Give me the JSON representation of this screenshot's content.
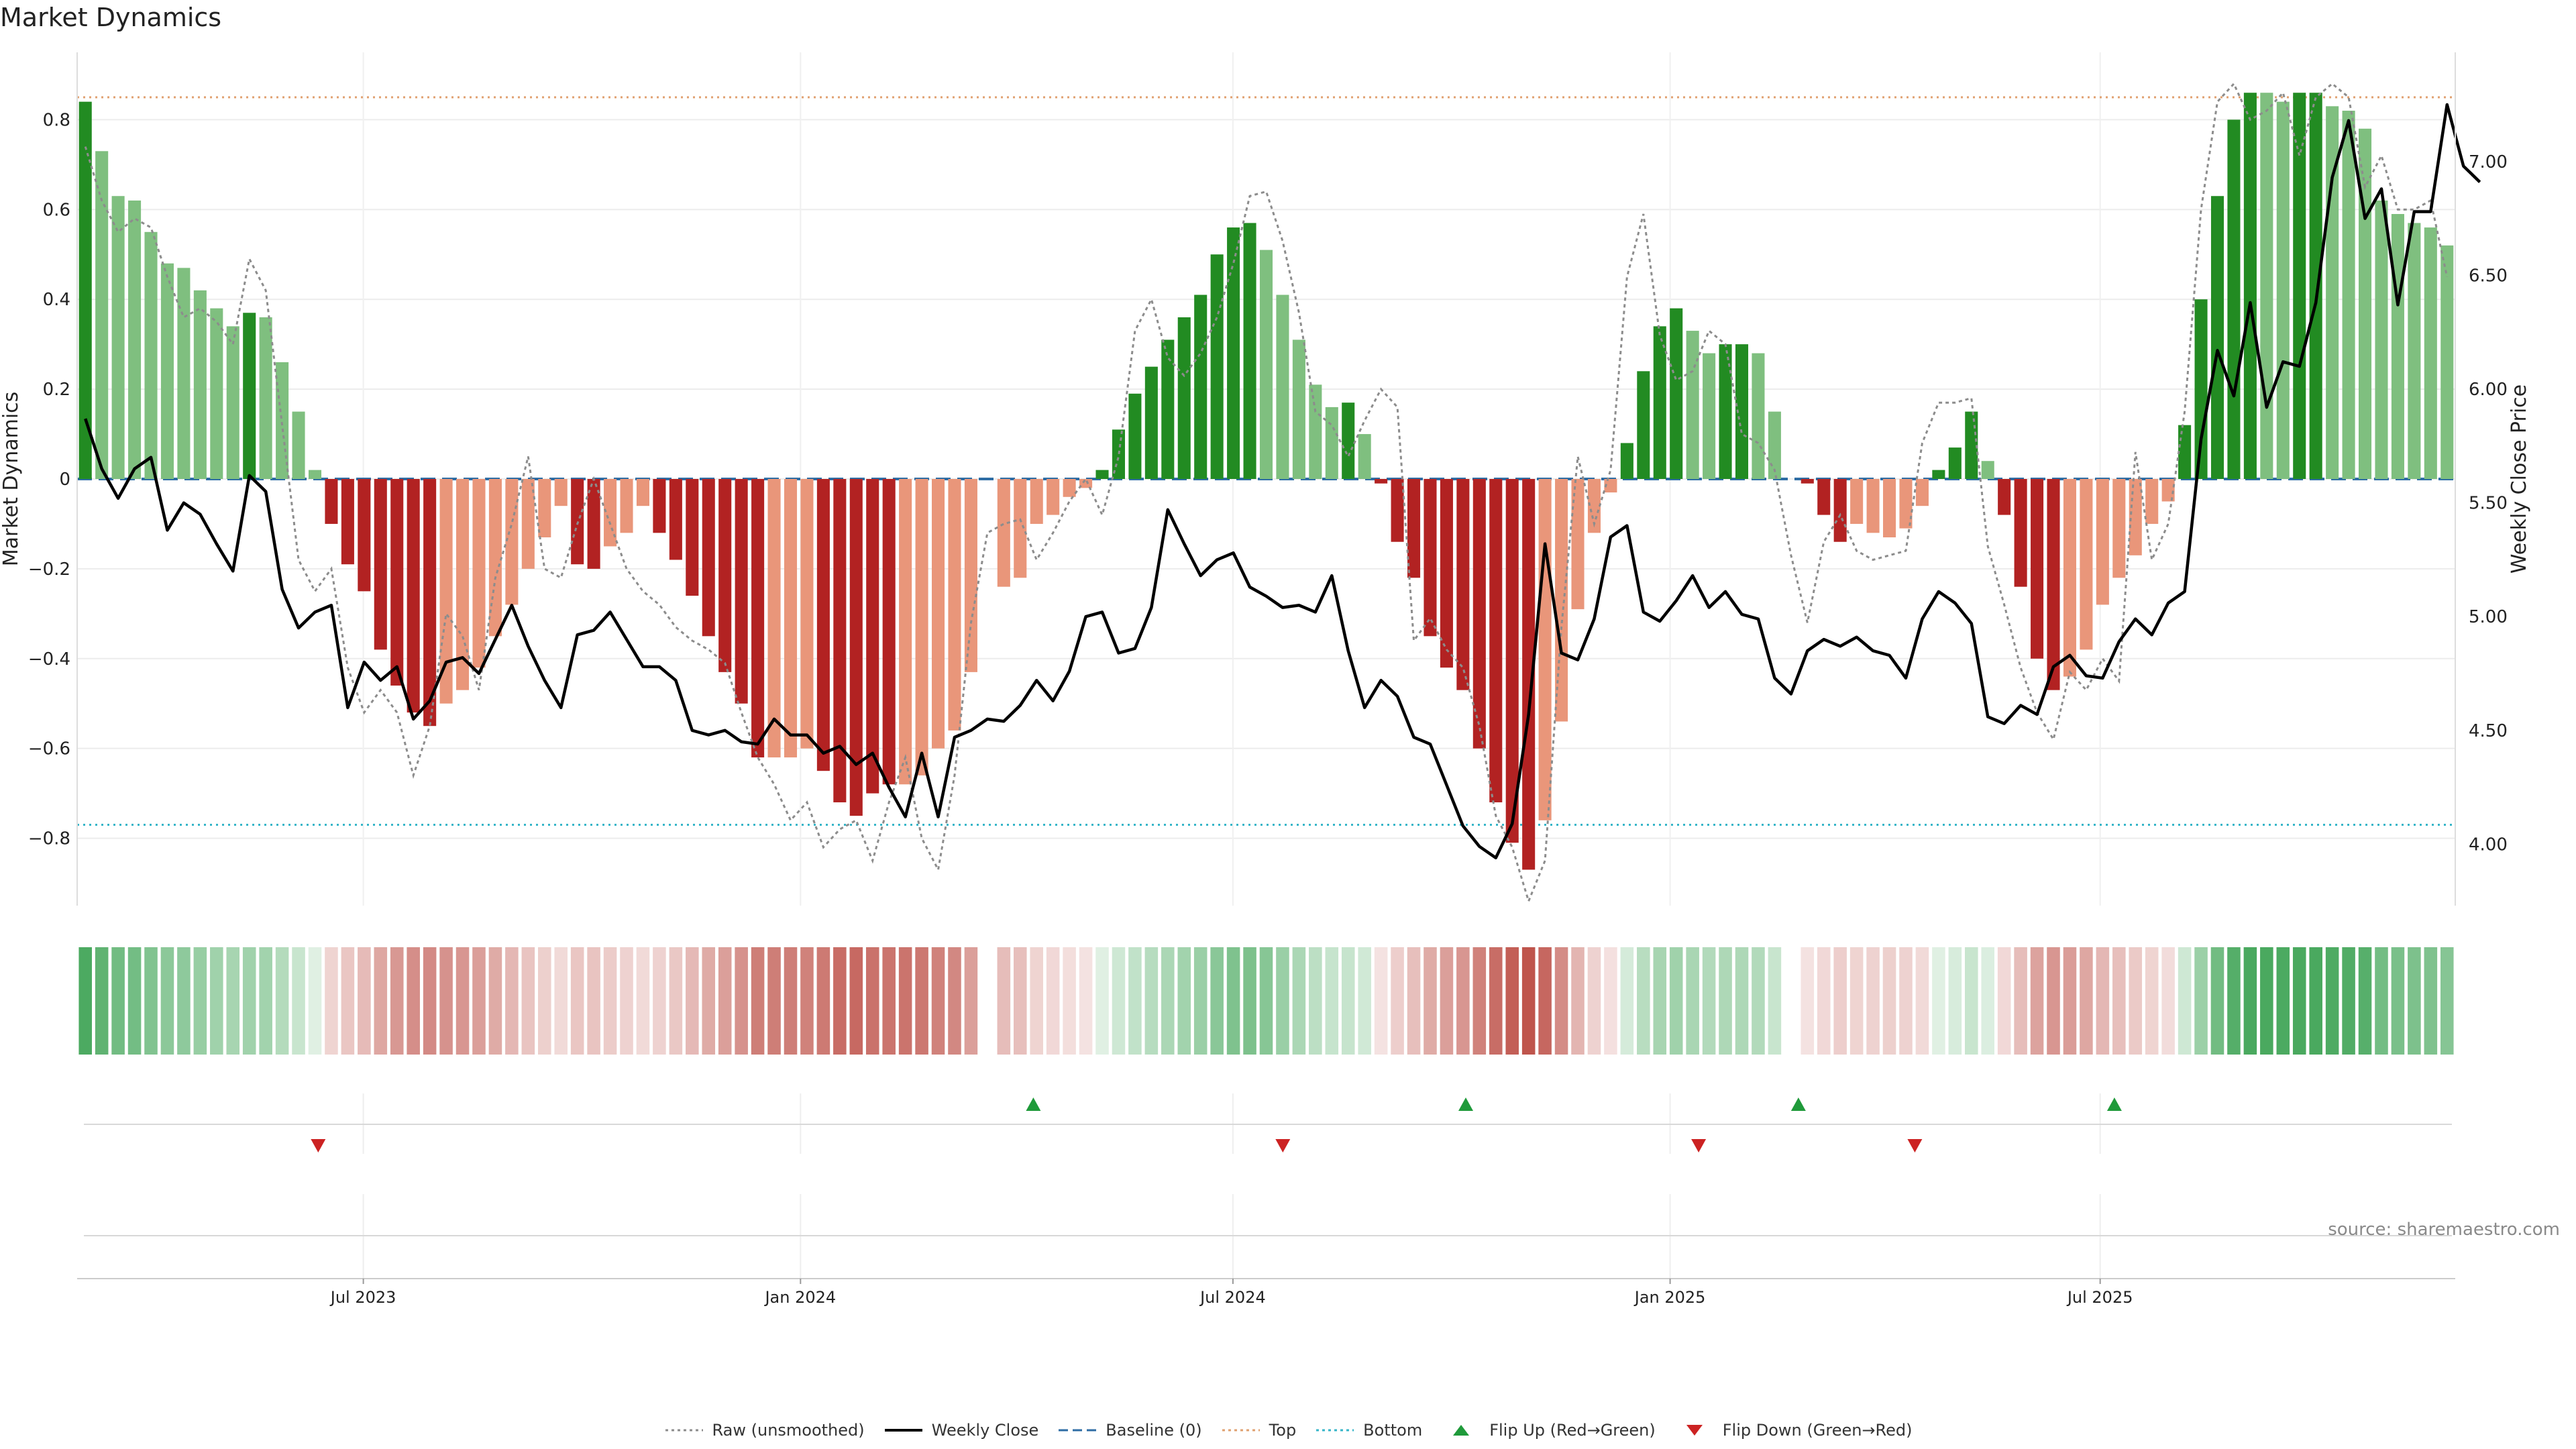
{
  "title": "Market Dynamics",
  "source": "source: sharemaestro.com",
  "colors": {
    "strong_green": "#228b22",
    "light_green": "#7fbf7f",
    "strong_red": "#b22222",
    "light_red": "#e9967a",
    "raw": "#8c8c8c",
    "close": "#000000",
    "baseline": "#2e6da4",
    "top": "#e0a070",
    "bottom": "#35b5c8",
    "flip_up": "#1f9a3a",
    "flip_down": "#cc2222"
  },
  "legend": [
    {
      "key": "raw",
      "label": "Raw (unsmoothed)",
      "style": "dotted",
      "color": "#8c8c8c"
    },
    {
      "key": "close",
      "label": "Weekly Close",
      "style": "solid",
      "color": "#000000"
    },
    {
      "key": "baseline",
      "label": "Baseline (0)",
      "style": "dashed",
      "color": "#2e6da4"
    },
    {
      "key": "top",
      "label": "Top",
      "style": "dotted",
      "color": "#e0a070"
    },
    {
      "key": "bottom",
      "label": "Bottom",
      "style": "dotted",
      "color": "#35b5c8"
    },
    {
      "key": "flip_up",
      "label": "Flip Up (Red→Green)",
      "style": "tri-up",
      "color": "#1f9a3a"
    },
    {
      "key": "flip_down",
      "label": "Flip Down (Green→Red)",
      "style": "tri-down",
      "color": "#cc2222"
    }
  ],
  "chart_data": {
    "type": "bar",
    "title": "Market Dynamics",
    "ylabel": "Market Dynamics",
    "ylabel_right": "Weekly Close Price",
    "ylim": [
      -0.95,
      0.95
    ],
    "ylim_right": [
      3.73,
      7.48
    ],
    "yticks": [
      -0.8,
      -0.6,
      -0.4,
      -0.2,
      0,
      0.2,
      0.4,
      0.6,
      0.8
    ],
    "ytick_labels": [
      "−0.8",
      "−0.6",
      "−0.4",
      "−0.2",
      "0",
      "0.2",
      "0.4",
      "0.6",
      "0.8"
    ],
    "yticks_right": [
      4.0,
      4.5,
      5.0,
      5.5,
      6.0,
      6.5,
      7.0
    ],
    "ytick_labels_right": [
      "4.00",
      "4.50",
      "5.00",
      "5.50",
      "6.00",
      "6.50",
      "7.00"
    ],
    "x_start": "2023-03-06",
    "x_end": "2025-11-24",
    "x_interval": "weekly",
    "xticks": [
      {
        "date": "2023-07-01",
        "label": "Jul 2023"
      },
      {
        "date": "2024-01-01",
        "label": "Jan 2024"
      },
      {
        "date": "2024-07-01",
        "label": "Jul 2024"
      },
      {
        "date": "2025-01-01",
        "label": "Jan 2025"
      },
      {
        "date": "2025-07-01",
        "label": "Jul 2025"
      }
    ],
    "top_level": 0.85,
    "bottom_level": -0.77,
    "baseline": 0,
    "grid": true,
    "legend_position": "bottom-center",
    "series": [
      {
        "name": "Market Dynamics",
        "type": "bar",
        "values": [
          0.84,
          0.73,
          0.63,
          0.62,
          0.55,
          0.48,
          0.47,
          0.42,
          0.38,
          0.34,
          0.37,
          0.36,
          0.26,
          0.15,
          0.02,
          -0.1,
          -0.19,
          -0.25,
          -0.38,
          -0.46,
          -0.52,
          -0.55,
          -0.5,
          -0.47,
          -0.42,
          -0.35,
          -0.28,
          -0.2,
          -0.13,
          -0.06,
          -0.19,
          -0.2,
          -0.15,
          -0.12,
          -0.06,
          -0.12,
          -0.18,
          -0.26,
          -0.35,
          -0.43,
          -0.5,
          -0.62,
          -0.62,
          -0.62,
          -0.6,
          -0.65,
          -0.72,
          -0.75,
          -0.7,
          -0.68,
          -0.68,
          -0.66,
          -0.6,
          -0.56,
          -0.43,
          0,
          -0.24,
          -0.22,
          -0.1,
          -0.08,
          -0.04,
          -0.02,
          0.02,
          0.11,
          0.19,
          0.25,
          0.31,
          0.36,
          0.41,
          0.5,
          0.56,
          0.57,
          0.51,
          0.41,
          0.31,
          0.21,
          0.16,
          0.17,
          0.1,
          -0.01,
          -0.14,
          -0.22,
          -0.35,
          -0.42,
          -0.47,
          -0.6,
          -0.72,
          -0.81,
          -0.87,
          -0.76,
          -0.54,
          -0.29,
          -0.12,
          -0.03,
          0.08,
          0.24,
          0.34,
          0.38,
          0.33,
          0.28,
          0.3,
          0.3,
          0.28,
          0.15,
          0,
          -0.01,
          -0.08,
          -0.14,
          -0.1,
          -0.12,
          -0.13,
          -0.11,
          -0.06,
          0.02,
          0.07,
          0.15,
          0.04,
          -0.08,
          -0.24,
          -0.4,
          -0.47,
          -0.44,
          -0.38,
          -0.28,
          -0.22,
          -0.17,
          -0.1,
          -0.05,
          0.12,
          0.4,
          0.63,
          0.8,
          0.86,
          0.86,
          0.84,
          0.86,
          0.86,
          0.83,
          0.82,
          0.78,
          0.62,
          0.59,
          0.57,
          0.56,
          0.52
        ],
        "strength": [
          "s",
          "w",
          "w",
          "w",
          "w",
          "w",
          "w",
          "w",
          "w",
          "w",
          "s",
          "w",
          "w",
          "w",
          "w",
          "s",
          "s",
          "s",
          "s",
          "s",
          "s",
          "s",
          "w",
          "w",
          "w",
          "w",
          "w",
          "w",
          "w",
          "w",
          "s",
          "s",
          "w",
          "w",
          "w",
          "s",
          "s",
          "s",
          "s",
          "s",
          "s",
          "s",
          "w",
          "w",
          "w",
          "s",
          "s",
          "s",
          "s",
          "s",
          "w",
          "w",
          "w",
          "w",
          "w",
          "w",
          "w",
          "w",
          "w",
          "w",
          "w",
          "w",
          "s",
          "s",
          "s",
          "s",
          "s",
          "s",
          "s",
          "s",
          "s",
          "s",
          "w",
          "w",
          "w",
          "w",
          "w",
          "s",
          "w",
          "s",
          "s",
          "s",
          "s",
          "s",
          "s",
          "s",
          "s",
          "s",
          "s",
          "w",
          "w",
          "w",
          "w",
          "w",
          "s",
          "s",
          "s",
          "s",
          "w",
          "w",
          "s",
          "s",
          "w",
          "w",
          "w",
          "s",
          "s",
          "s",
          "w",
          "w",
          "w",
          "w",
          "w",
          "s",
          "s",
          "s",
          "w",
          "s",
          "s",
          "s",
          "s",
          "w",
          "w",
          "w",
          "w",
          "w",
          "w",
          "w",
          "s",
          "s",
          "s",
          "s",
          "s",
          "w",
          "w",
          "s",
          "s",
          "w",
          "w",
          "w",
          "w",
          "w",
          "w",
          "w",
          "w"
        ]
      },
      {
        "name": "Raw (unsmoothed)",
        "type": "line",
        "values": [
          0.74,
          0.62,
          0.55,
          0.58,
          0.56,
          0.45,
          0.36,
          0.38,
          0.35,
          0.3,
          0.49,
          0.42,
          0.12,
          -0.18,
          -0.25,
          -0.2,
          -0.42,
          -0.52,
          -0.47,
          -0.52,
          -0.66,
          -0.55,
          -0.3,
          -0.35,
          -0.47,
          -0.22,
          -0.1,
          0.05,
          -0.2,
          -0.22,
          -0.1,
          0,
          -0.1,
          -0.2,
          -0.25,
          -0.28,
          -0.33,
          -0.36,
          -0.38,
          -0.41,
          -0.52,
          -0.62,
          -0.68,
          -0.76,
          -0.72,
          -0.82,
          -0.78,
          -0.76,
          -0.85,
          -0.72,
          -0.62,
          -0.8,
          -0.87,
          -0.66,
          -0.32,
          -0.12,
          -0.1,
          -0.09,
          -0.18,
          -0.12,
          -0.05,
          0,
          -0.08,
          0.05,
          0.33,
          0.4,
          0.27,
          0.23,
          0.28,
          0.36,
          0.48,
          0.63,
          0.64,
          0.53,
          0.37,
          0.15,
          0.12,
          0.05,
          0.13,
          0.2,
          0.16,
          -0.36,
          -0.31,
          -0.38,
          -0.42,
          -0.55,
          -0.75,
          -0.82,
          -0.94,
          -0.85,
          -0.33,
          0.05,
          -0.1,
          0.02,
          0.45,
          0.59,
          0.32,
          0.22,
          0.24,
          0.33,
          0.3,
          0.1,
          0.08,
          0.02,
          -0.17,
          -0.32,
          -0.14,
          -0.08,
          -0.16,
          -0.18,
          -0.17,
          -0.16,
          0.08,
          0.17,
          0.17,
          0.18,
          -0.15,
          -0.28,
          -0.42,
          -0.52,
          -0.58,
          -0.43,
          -0.47,
          -0.4,
          -0.45,
          0.06,
          -0.18,
          -0.1,
          0.15,
          0.6,
          0.84,
          0.88,
          0.8,
          0.82,
          0.86,
          0.72,
          0.85,
          0.88,
          0.85,
          0.65,
          0.72,
          0.6,
          0.6,
          0.62,
          0.45
        ]
      },
      {
        "name": "Weekly Close",
        "type": "line",
        "axis": "right",
        "values": [
          5.87,
          5.65,
          5.52,
          5.65,
          5.7,
          5.38,
          5.5,
          5.45,
          5.32,
          5.2,
          5.62,
          5.55,
          5.12,
          4.95,
          5.02,
          5.05,
          4.6,
          4.8,
          4.72,
          4.78,
          4.55,
          4.63,
          4.8,
          4.82,
          4.75,
          4.9,
          5.05,
          4.87,
          4.72,
          4.6,
          4.92,
          4.94,
          5.02,
          4.9,
          4.78,
          4.78,
          4.72,
          4.5,
          4.48,
          4.5,
          4.45,
          4.44,
          4.55,
          4.48,
          4.48,
          4.4,
          4.43,
          4.35,
          4.4,
          4.25,
          4.12,
          4.4,
          4.12,
          4.47,
          4.5,
          4.55,
          4.54,
          4.61,
          4.72,
          4.63,
          4.76,
          5.0,
          5.02,
          4.84,
          4.86,
          5.04,
          5.47,
          5.32,
          5.18,
          5.25,
          5.28,
          5.13,
          5.09,
          5.04,
          5.05,
          5.02,
          5.18,
          4.85,
          4.6,
          4.72,
          4.65,
          4.47,
          4.44,
          4.26,
          4.08,
          3.99,
          3.94,
          4.09,
          4.57,
          5.32,
          4.84,
          4.81,
          4.99,
          5.35,
          5.4,
          5.02,
          4.98,
          5.07,
          5.18,
          5.04,
          5.11,
          5.01,
          4.99,
          4.73,
          4.66,
          4.85,
          4.9,
          4.87,
          4.91,
          4.85,
          4.83,
          4.73,
          4.99,
          5.11,
          5.06,
          4.97,
          4.56,
          4.53,
          4.61,
          4.57,
          4.78,
          4.83,
          4.74,
          4.73,
          4.89,
          4.99,
          4.92,
          5.06,
          5.11,
          5.78,
          6.17,
          5.97,
          6.38,
          5.92,
          6.12,
          6.1,
          6.38,
          6.93,
          7.18,
          6.75,
          6.88,
          6.37,
          6.78,
          6.78,
          7.25,
          6.98,
          6.91
        ]
      }
    ],
    "regime_strip": {
      "description": "Per-week colour band (green = positive regime, red = negative; shade = intensity)",
      "values": [
        0.84,
        0.73,
        0.63,
        0.62,
        0.55,
        0.48,
        0.47,
        0.42,
        0.38,
        0.34,
        0.37,
        0.36,
        0.26,
        0.15,
        0.02,
        -0.1,
        -0.19,
        -0.25,
        -0.38,
        -0.46,
        -0.52,
        -0.55,
        -0.5,
        -0.47,
        -0.42,
        -0.35,
        -0.28,
        -0.2,
        -0.13,
        -0.06,
        -0.19,
        -0.2,
        -0.15,
        -0.12,
        -0.06,
        -0.12,
        -0.18,
        -0.26,
        -0.35,
        -0.43,
        -0.5,
        -0.62,
        -0.62,
        -0.62,
        -0.6,
        -0.65,
        -0.72,
        -0.75,
        -0.7,
        -0.68,
        -0.68,
        -0.66,
        -0.6,
        -0.56,
        -0.43,
        0,
        -0.24,
        -0.22,
        -0.1,
        -0.08,
        -0.04,
        -0.02,
        0.02,
        0.11,
        0.19,
        0.25,
        0.31,
        0.36,
        0.41,
        0.5,
        0.56,
        0.57,
        0.51,
        0.41,
        0.31,
        0.21,
        0.16,
        0.17,
        0.1,
        -0.01,
        -0.14,
        -0.22,
        -0.35,
        -0.42,
        -0.47,
        -0.6,
        -0.72,
        -0.81,
        -0.87,
        -0.76,
        -0.54,
        -0.29,
        -0.12,
        -0.03,
        0.08,
        0.24,
        0.34,
        0.38,
        0.33,
        0.28,
        0.3,
        0.3,
        0.28,
        0.15,
        0,
        -0.01,
        -0.08,
        -0.14,
        -0.1,
        -0.12,
        -0.13,
        -0.11,
        -0.06,
        0.02,
        0.07,
        0.15,
        0.04,
        -0.08,
        -0.24,
        -0.4,
        -0.47,
        -0.44,
        -0.38,
        -0.28,
        -0.22,
        -0.17,
        -0.1,
        -0.05,
        0.12,
        0.4,
        0.63,
        0.8,
        0.86,
        0.86,
        0.84,
        0.86,
        0.86,
        0.83,
        0.82,
        0.78,
        0.62,
        0.59,
        0.57,
        0.56,
        0.52
      ]
    },
    "flip_up_dates": [
      "2024-04-08",
      "2024-10-07",
      "2025-02-24",
      "2025-07-07"
    ],
    "flip_down_dates": [
      "2023-06-12",
      "2024-07-22",
      "2025-01-13",
      "2025-04-14"
    ]
  }
}
